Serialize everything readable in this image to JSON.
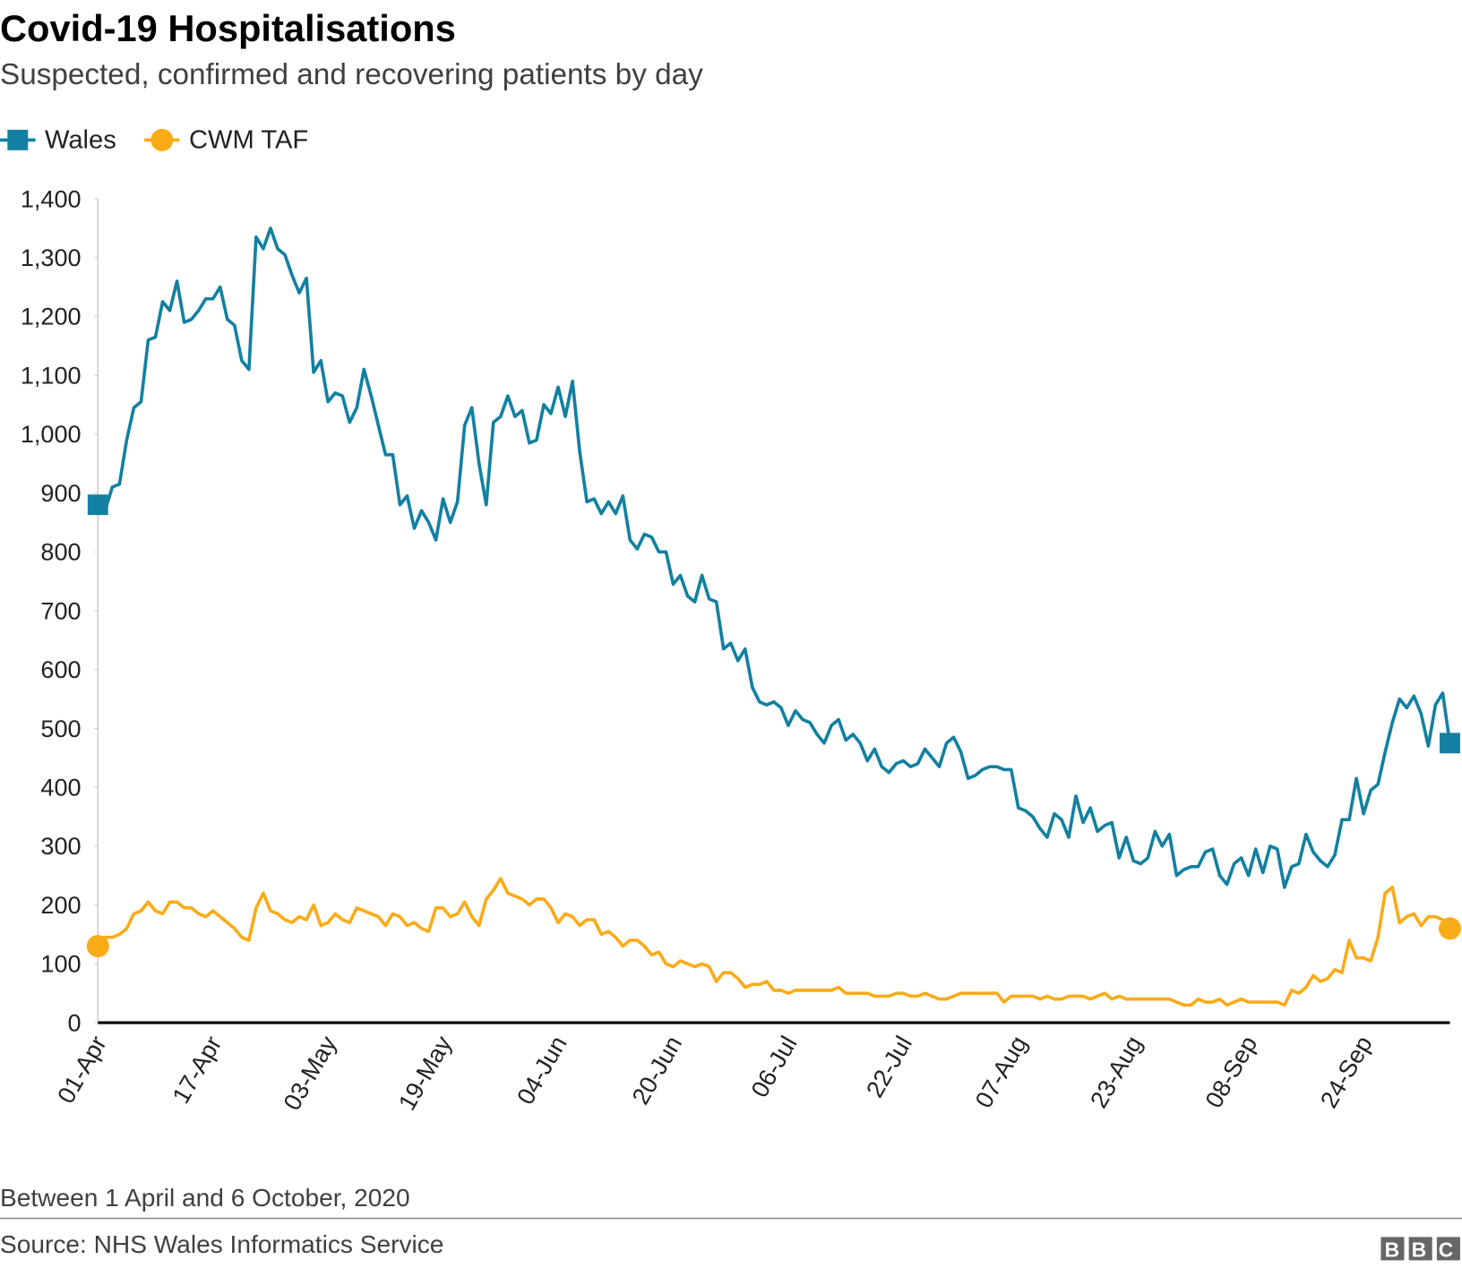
{
  "chart_data": {
    "type": "line",
    "title": "Covid-19 Hospitalisations",
    "subtitle": "Suspected, confirmed and recovering patients by day",
    "note": "Between 1 April and 6 October, 2020",
    "source": "Source: NHS Wales Informatics Service",
    "logo": "BBC",
    "categories": [
      "01-Apr",
      null,
      null,
      null,
      null,
      null,
      null,
      null,
      null,
      null,
      null,
      null,
      null,
      null,
      null,
      null,
      "17-Apr",
      null,
      null,
      null,
      null,
      null,
      null,
      null,
      null,
      null,
      null,
      null,
      null,
      null,
      null,
      null,
      "03-May",
      null,
      null,
      null,
      null,
      null,
      null,
      null,
      null,
      null,
      null,
      null,
      null,
      null,
      null,
      null,
      "19-May",
      null,
      null,
      null,
      null,
      null,
      null,
      null,
      null,
      null,
      null,
      null,
      null,
      null,
      null,
      null,
      "04-Jun",
      null,
      null,
      null,
      null,
      null,
      null,
      null,
      null,
      null,
      null,
      null,
      null,
      null,
      null,
      null,
      "20-Jun",
      null,
      null,
      null,
      null,
      null,
      null,
      null,
      null,
      null,
      null,
      null,
      null,
      null,
      null,
      null,
      "06-Jul",
      null,
      null,
      null,
      null,
      null,
      null,
      null,
      null,
      null,
      null,
      null,
      null,
      null,
      null,
      null,
      "22-Jul",
      null,
      null,
      null,
      null,
      null,
      null,
      null,
      null,
      null,
      null,
      null,
      null,
      null,
      null,
      null,
      "07-Aug",
      null,
      null,
      null,
      null,
      null,
      null,
      null,
      null,
      null,
      null,
      null,
      null,
      null,
      null,
      null,
      "23-Aug",
      null,
      null,
      null,
      null,
      null,
      null,
      null,
      null,
      null,
      null,
      null,
      null,
      null,
      null,
      null,
      "08-Sep",
      null,
      null,
      null,
      null,
      null,
      null,
      null,
      null,
      null,
      null,
      null,
      null,
      null,
      null,
      null,
      "24-Sep",
      null,
      null,
      null,
      null,
      null,
      null,
      null,
      null,
      null,
      null,
      null,
      null
    ],
    "series": [
      {
        "name": "Wales",
        "color": "#1380a1",
        "marker": "square",
        "values": [
          880,
          870,
          910,
          915,
          990,
          1045,
          1055,
          1160,
          1165,
          1225,
          1210,
          1260,
          1190,
          1195,
          1210,
          1230,
          1230,
          1250,
          1195,
          1185,
          1125,
          1110,
          1335,
          1315,
          1350,
          1315,
          1305,
          1270,
          1240,
          1265,
          1105,
          1125,
          1055,
          1070,
          1065,
          1020,
          1045,
          1110,
          1065,
          1015,
          965,
          965,
          880,
          895,
          840,
          870,
          850,
          820,
          890,
          850,
          885,
          1015,
          1045,
          950,
          880,
          1020,
          1030,
          1065,
          1030,
          1040,
          985,
          990,
          1050,
          1035,
          1080,
          1030,
          1090,
          970,
          885,
          890,
          865,
          885,
          865,
          895,
          820,
          805,
          830,
          825,
          800,
          800,
          745,
          760,
          725,
          715,
          760,
          720,
          715,
          635,
          645,
          615,
          635,
          570,
          545,
          540,
          545,
          535,
          505,
          530,
          515,
          510,
          490,
          475,
          505,
          515,
          480,
          490,
          475,
          445,
          465,
          435,
          425,
          440,
          445,
          435,
          440,
          465,
          450,
          435,
          475,
          485,
          460,
          415,
          420,
          430,
          435,
          435,
          430,
          430,
          365,
          360,
          350,
          330,
          315,
          355,
          345,
          315,
          385,
          340,
          365,
          325,
          335,
          340,
          280,
          315,
          275,
          270,
          280,
          325,
          300,
          320,
          250,
          260,
          265,
          265,
          290,
          295,
          250,
          235,
          270,
          280,
          250,
          295,
          255,
          300,
          295,
          230,
          265,
          270,
          320,
          290,
          275,
          265,
          285,
          345,
          345,
          415,
          355,
          395,
          405,
          460,
          510,
          550,
          535,
          555,
          525,
          470,
          540,
          560,
          475
        ]
      },
      {
        "name": "CWM TAF",
        "color": "#faab18",
        "marker": "circle",
        "values": [
          130,
          145,
          145,
          150,
          160,
          185,
          190,
          205,
          190,
          185,
          205,
          205,
          195,
          195,
          185,
          180,
          190,
          180,
          170,
          160,
          145,
          140,
          195,
          220,
          190,
          185,
          175,
          170,
          180,
          175,
          200,
          165,
          170,
          185,
          175,
          170,
          195,
          190,
          185,
          180,
          165,
          185,
          180,
          165,
          170,
          160,
          155,
          195,
          195,
          180,
          185,
          205,
          180,
          165,
          210,
          225,
          245,
          220,
          215,
          210,
          200,
          210,
          210,
          195,
          170,
          185,
          180,
          165,
          175,
          175,
          150,
          155,
          145,
          130,
          140,
          140,
          130,
          115,
          120,
          100,
          95,
          105,
          100,
          95,
          100,
          95,
          70,
          85,
          85,
          75,
          60,
          65,
          65,
          70,
          55,
          55,
          50,
          55,
          55,
          55,
          55,
          55,
          55,
          60,
          50,
          50,
          50,
          50,
          45,
          45,
          45,
          50,
          50,
          45,
          45,
          50,
          45,
          40,
          40,
          45,
          50,
          50,
          50,
          50,
          50,
          50,
          35,
          45,
          45,
          45,
          45,
          40,
          45,
          40,
          40,
          45,
          45,
          45,
          40,
          45,
          50,
          40,
          45,
          40,
          40,
          40,
          40,
          40,
          40,
          40,
          35,
          30,
          30,
          40,
          35,
          35,
          40,
          30,
          35,
          40,
          35,
          35,
          35,
          35,
          35,
          30,
          55,
          50,
          60,
          80,
          70,
          75,
          90,
          85,
          140,
          110,
          110,
          105,
          145,
          220,
          230,
          170,
          180,
          185,
          165,
          180,
          180,
          175,
          160
        ]
      }
    ],
    "ylim": [
      0,
      1400
    ],
    "yticks": [
      0,
      100,
      200,
      300,
      400,
      500,
      600,
      700,
      800,
      900,
      {
        "value": 1000,
        "label": "1,000"
      },
      {
        "value": 1100,
        "label": "1,100"
      },
      {
        "value": 1200,
        "label": "1,200"
      },
      {
        "value": 1300,
        "label": "1,300"
      },
      {
        "value": 1400,
        "label": "1,400"
      }
    ],
    "grid": false
  }
}
